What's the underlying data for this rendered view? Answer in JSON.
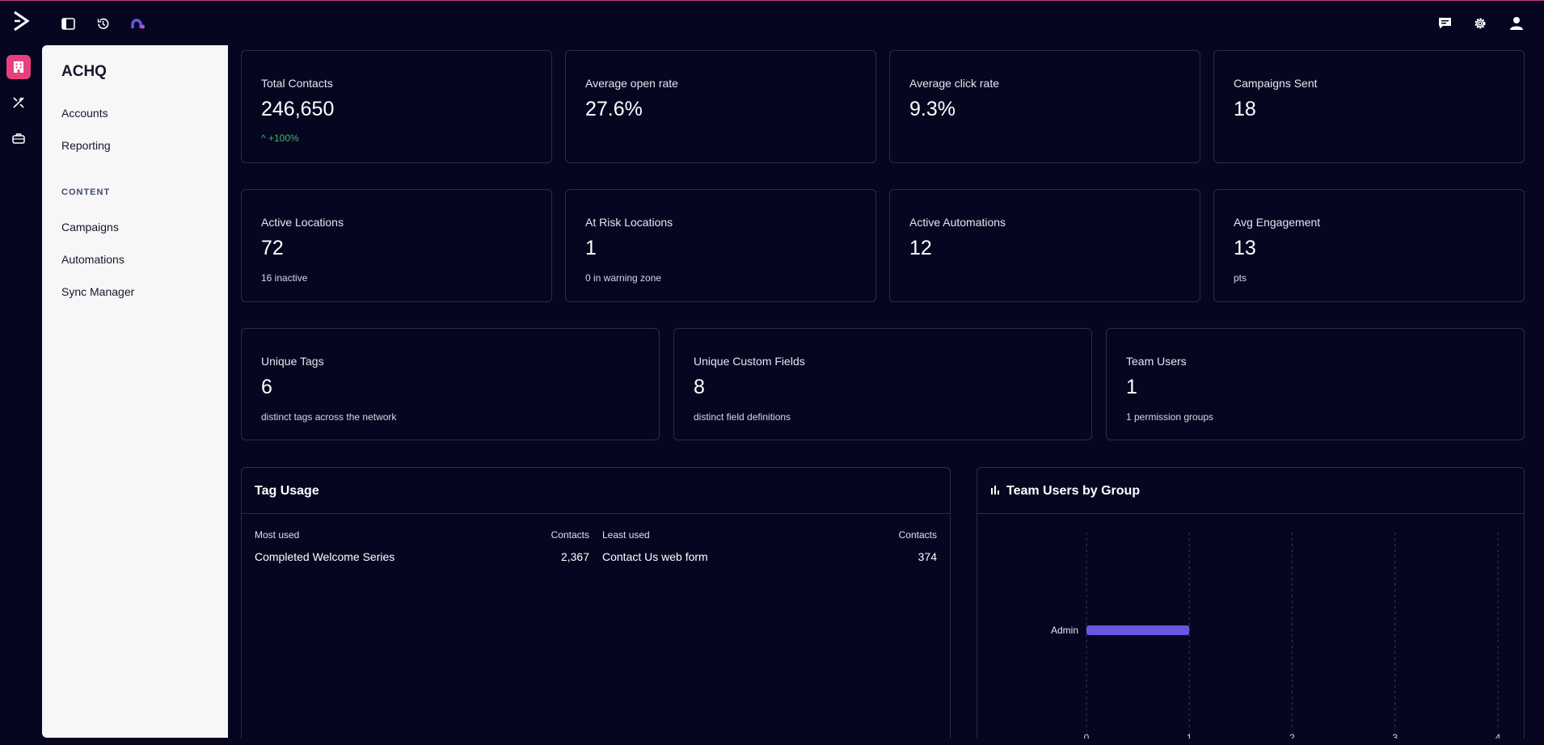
{
  "topbar": {
    "icons": [
      "activecampaign-logo-icon",
      "sidebar-toggle-icon",
      "history-icon",
      "app-switch-icon",
      "chat-icon",
      "gear-icon",
      "user-icon"
    ]
  },
  "rail": {
    "icons": [
      "building-icon",
      "magic-tools-icon",
      "briefcase-icon"
    ],
    "accent": "#e8407f"
  },
  "sidebar": {
    "title": "ACHQ",
    "items": [
      "Accounts",
      "Reporting"
    ],
    "section_label": "CONTENT",
    "content_items": [
      "Campaigns",
      "Automations",
      "Sync Manager"
    ]
  },
  "stats_row1": [
    {
      "label": "Total Contacts",
      "value": "246,650",
      "trend": "^ +100%"
    },
    {
      "label": "Average open rate",
      "value": "27.6%"
    },
    {
      "label": "Average click rate",
      "value": "9.3%"
    },
    {
      "label": "Campaigns Sent",
      "value": "18"
    }
  ],
  "stats_row2": [
    {
      "label": "Active Locations",
      "value": "72",
      "sub": "16 inactive"
    },
    {
      "label": "At Risk Locations",
      "value": "1",
      "sub": "0 in warning zone"
    },
    {
      "label": "Active Automations",
      "value": "12"
    },
    {
      "label": "Avg Engagement",
      "value": "13",
      "sub": "pts"
    }
  ],
  "stats_row3": [
    {
      "label": "Unique Tags",
      "value": "6",
      "sub": "distinct tags across the network"
    },
    {
      "label": "Unique Custom Fields",
      "value": "8",
      "sub": "distinct field definitions"
    },
    {
      "label": "Team Users",
      "value": "1",
      "sub": "1 permission groups"
    }
  ],
  "tag_usage": {
    "title": "Tag Usage",
    "most_used_header": "Most used",
    "contacts_header": "Contacts",
    "least_used_header": "Least used",
    "contacts_header_2": "Contacts",
    "most_used_name": "Completed Welcome Series",
    "most_used_count": "2,367",
    "least_used_name": "Contact Us web form",
    "least_used_count": "374"
  },
  "team_users": {
    "title": "Team Users by Group",
    "icon": "bar-chart-icon",
    "chart_data": {
      "type": "bar",
      "orientation": "horizontal",
      "categories": [
        "Admin"
      ],
      "values": [
        1
      ],
      "xlim": [
        0,
        4
      ],
      "x_ticks": [
        "0",
        "1",
        "2",
        "3",
        "4"
      ],
      "grid": true,
      "bar_color": "#6a55e0"
    }
  }
}
